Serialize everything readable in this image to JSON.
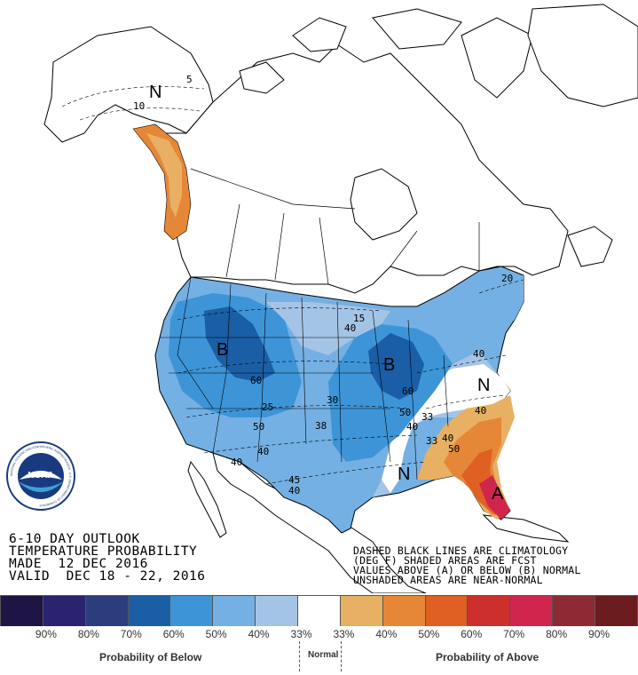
{
  "title": {
    "line1": "6-10 DAY OUTLOOK",
    "line2": "TEMPERATURE PROBABILITY",
    "line3": "MADE  12 DEC 2016",
    "line4": "VALID  DEC 18 - 22, 2016"
  },
  "notes": {
    "line1": "DASHED BLACK LINES ARE CLIMATOLOGY",
    "line2": "(DEG F) SHADED AREAS ARE FCST",
    "line3": "VALUES ABOVE (A) OR BELOW (B) NORMAL",
    "line4": "UNSHADED AREAS ARE NEAR-NORMAL"
  },
  "logo": {
    "text": "NOAA",
    "ring_text": "NATIONAL OCEANIC AND ATMOSPHERIC ADMINISTRATION · U.S. DEPARTMENT OF COMMERCE"
  },
  "legend": {
    "colors": [
      "#1e1545",
      "#2a2370",
      "#2b3d7d",
      "#1a5ea6",
      "#3d95d8",
      "#74b0e3",
      "#a4c4e5",
      "#ffffff",
      "#e8b063",
      "#e68738",
      "#e06023",
      "#cd2f2c",
      "#d0254c",
      "#8e2a33",
      "#6b1c1f"
    ],
    "percent_labels": [
      "90%",
      "80%",
      "70%",
      "60%",
      "50%",
      "40%",
      "33%",
      "33%",
      "40%",
      "50%",
      "60%",
      "70%",
      "80%",
      "90%"
    ],
    "below_caption": "Probability of Below",
    "normal_caption": "Normal",
    "above_caption": "Probability of Above"
  },
  "map_labels": {
    "letters": [
      {
        "text": "N",
        "region": "alaska"
      },
      {
        "text": "B",
        "region": "northern-rockies"
      },
      {
        "text": "B",
        "region": "great-lakes"
      },
      {
        "text": "N",
        "region": "mid-atlantic"
      },
      {
        "text": "N",
        "region": "gulf-coast"
      },
      {
        "text": "A",
        "region": "florida"
      }
    ],
    "contours": [
      "5",
      "10",
      "15",
      "40",
      "60",
      "25",
      "50",
      "40",
      "40",
      "30",
      "38",
      "45",
      "40",
      "50",
      "60",
      "40",
      "33",
      "40",
      "33",
      "40",
      "50",
      "40",
      "20"
    ]
  }
}
